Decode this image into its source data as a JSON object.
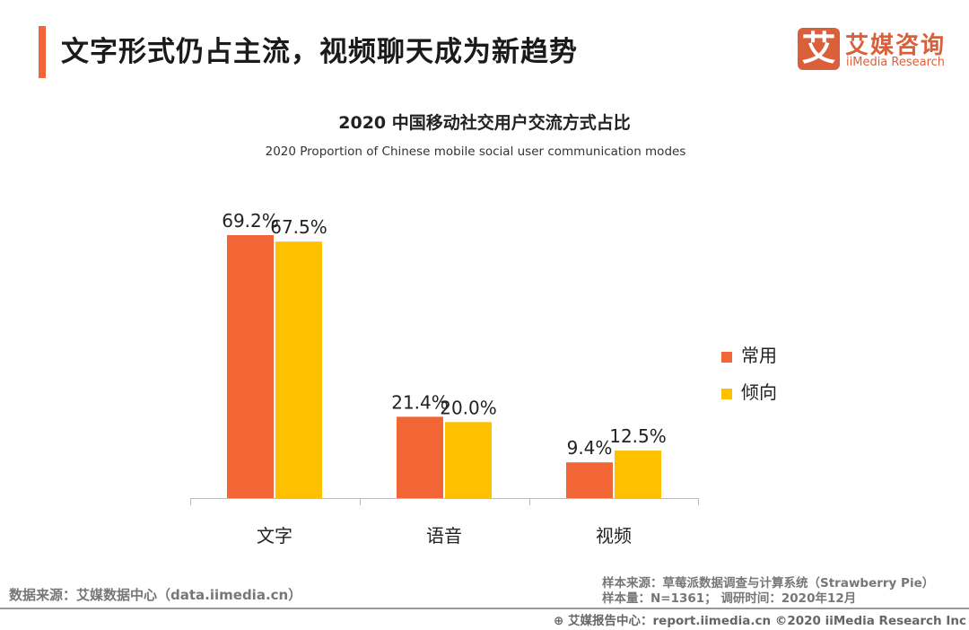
{
  "header": {
    "title": "文字形式仍占主流，视频聊天成为新趋势",
    "logo_mark": "艾",
    "logo_cn": "艾媒咨询",
    "logo_en": "iiMedia Research"
  },
  "colors": {
    "accent": "#F26534",
    "series1": "#F26534",
    "series2": "#FFC000",
    "logo": "#D9603B"
  },
  "chart_data": {
    "type": "bar",
    "title": "2020 中国移动社交用户交流方式占比",
    "subtitle": "2020 Proportion of Chinese mobile social user communication modes",
    "categories": [
      "文字",
      "语音",
      "视频"
    ],
    "series": [
      {
        "name": "常用",
        "values": [
          69.2,
          21.4,
          9.4
        ],
        "labels": [
          "69.2%",
          "21.4%",
          "9.4%"
        ]
      },
      {
        "name": "倾向",
        "values": [
          67.5,
          20.0,
          12.5
        ],
        "labels": [
          "67.5%",
          "20.0%",
          "12.5%"
        ]
      }
    ],
    "ylim": [
      0,
      80
    ],
    "grid": false,
    "legend": "right"
  },
  "footer": {
    "source_left": "数据来源：艾媒数据中心（data.iimedia.cn）",
    "sample_source": "样本来源：草莓派数据调查与计算系统（Strawberry Pie）",
    "sample_size": "样本量：N=1361； 调研时间：2020年12月",
    "copyright": "艾媒报告中心：report.iimedia.cn   ©2020  iiMedia Research  Inc"
  }
}
